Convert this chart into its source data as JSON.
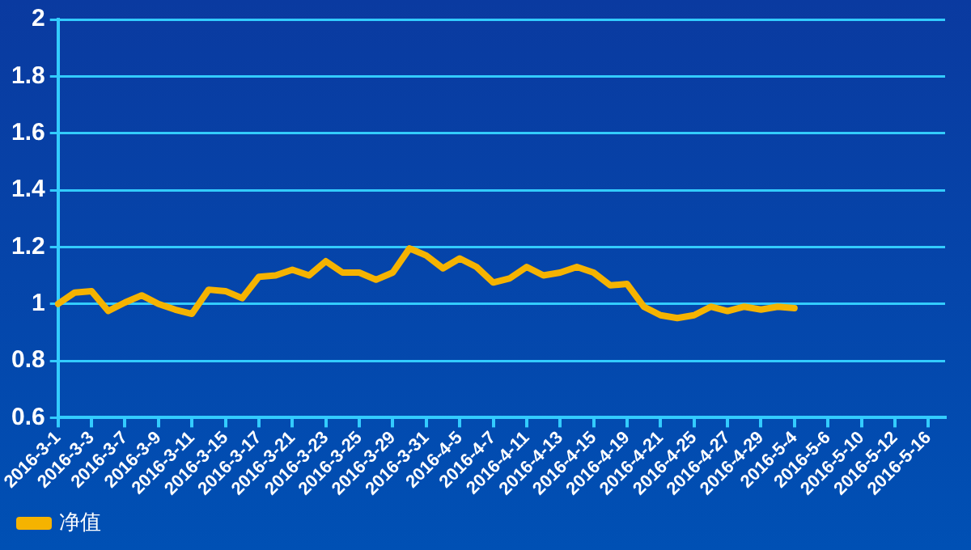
{
  "chart_data": {
    "type": "line",
    "categories": [
      "2016-3-1",
      null,
      "2016-3-3",
      null,
      "2016-3-7",
      null,
      "2016-3-9",
      null,
      "2016-3-11",
      null,
      "2016-3-15",
      null,
      "2016-3-17",
      null,
      "2016-3-21",
      null,
      "2016-3-23",
      null,
      "2016-3-25",
      null,
      "2016-3-29",
      null,
      "2016-3-31",
      null,
      "2016-4-5",
      null,
      "2016-4-7",
      null,
      "2016-4-11",
      null,
      "2016-4-13",
      null,
      "2016-4-15",
      null,
      "2016-4-19",
      null,
      "2016-4-21",
      null,
      "2016-4-25",
      null,
      "2016-4-27",
      null,
      "2016-4-29",
      null,
      "2016-5-4",
      null,
      "2016-5-6",
      null,
      "2016-5-10",
      null,
      "2016-5-12",
      null,
      "2016-5-16",
      null
    ],
    "series": [
      {
        "name": "净值",
        "color": "#f5b300",
        "values": [
          1.0,
          1.04,
          1.045,
          0.975,
          1.005,
          1.03,
          1.0,
          0.98,
          0.965,
          1.05,
          1.045,
          1.02,
          1.095,
          1.1,
          1.12,
          1.1,
          1.15,
          1.11,
          1.11,
          1.085,
          1.11,
          1.195,
          1.17,
          1.125,
          1.16,
          1.13,
          1.075,
          1.09,
          1.13,
          1.1,
          1.11,
          1.13,
          1.11,
          1.065,
          1.07,
          0.99,
          0.96,
          0.95,
          0.96,
          0.99,
          0.975,
          0.99,
          0.98,
          0.99,
          0.985,
          null,
          null,
          null,
          null,
          null,
          null,
          null,
          null,
          null
        ]
      }
    ],
    "ylim": [
      0.6,
      2
    ],
    "yticks": [
      0.6,
      0.8,
      1,
      1.2,
      1.4,
      1.6,
      1.8,
      2
    ],
    "grid": "y",
    "legend": "bottom left",
    "marker": "none",
    "line_style": "solid"
  }
}
